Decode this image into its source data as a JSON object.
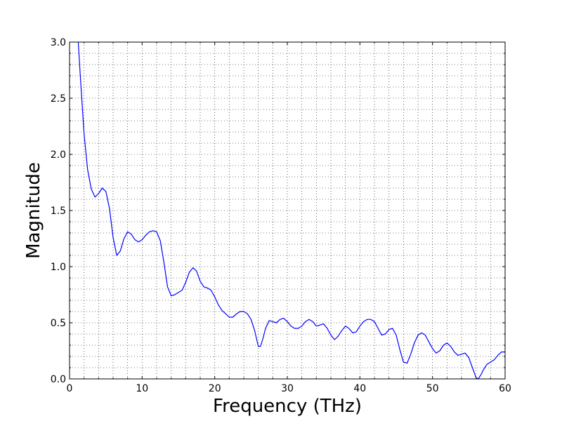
{
  "chart_data": {
    "type": "line",
    "title": "",
    "xlabel": "Frequency (THz)",
    "ylabel": "Magnitude",
    "xlim": [
      0,
      60
    ],
    "ylim": [
      0.0,
      3.0
    ],
    "x_ticks": [
      0,
      10,
      20,
      30,
      40,
      50,
      60
    ],
    "x_tick_labels": [
      "0",
      "10",
      "20",
      "30",
      "40",
      "50",
      "60"
    ],
    "y_ticks": [
      0.0,
      0.5,
      1.0,
      1.5,
      2.0,
      2.5,
      3.0
    ],
    "y_tick_labels": [
      "0.0",
      "0.5",
      "1.0",
      "1.5",
      "2.0",
      "2.5",
      "3.0"
    ],
    "x_minor_step": 2,
    "y_minor_step": 0.1,
    "grid": true,
    "grid_style": "dotted",
    "series": [
      {
        "color": "#0000ff",
        "points": [
          [
            1.2,
            3.0
          ],
          [
            1.5,
            2.68
          ],
          [
            2.0,
            2.18
          ],
          [
            2.5,
            1.86
          ],
          [
            3.0,
            1.69
          ],
          [
            3.5,
            1.62
          ],
          [
            4.0,
            1.65
          ],
          [
            4.5,
            1.7
          ],
          [
            5.0,
            1.67
          ],
          [
            5.5,
            1.52
          ],
          [
            6.0,
            1.26
          ],
          [
            6.5,
            1.1
          ],
          [
            7.0,
            1.14
          ],
          [
            7.5,
            1.25
          ],
          [
            8.0,
            1.31
          ],
          [
            8.5,
            1.29
          ],
          [
            9.0,
            1.24
          ],
          [
            9.5,
            1.22
          ],
          [
            10.0,
            1.24
          ],
          [
            10.5,
            1.28
          ],
          [
            11.0,
            1.31
          ],
          [
            11.5,
            1.32
          ],
          [
            12.0,
            1.31
          ],
          [
            12.5,
            1.23
          ],
          [
            13.0,
            1.04
          ],
          [
            13.5,
            0.82
          ],
          [
            14.0,
            0.74
          ],
          [
            14.5,
            0.75
          ],
          [
            15.0,
            0.77
          ],
          [
            15.5,
            0.79
          ],
          [
            16.0,
            0.86
          ],
          [
            16.5,
            0.95
          ],
          [
            17.0,
            0.99
          ],
          [
            17.5,
            0.96
          ],
          [
            18.0,
            0.87
          ],
          [
            18.5,
            0.82
          ],
          [
            19.0,
            0.81
          ],
          [
            19.5,
            0.79
          ],
          [
            20.0,
            0.73
          ],
          [
            20.5,
            0.66
          ],
          [
            21.0,
            0.61
          ],
          [
            21.5,
            0.58
          ],
          [
            22.0,
            0.55
          ],
          [
            22.5,
            0.55
          ],
          [
            23.0,
            0.58
          ],
          [
            23.5,
            0.6
          ],
          [
            24.0,
            0.6
          ],
          [
            24.5,
            0.58
          ],
          [
            25.0,
            0.53
          ],
          [
            25.5,
            0.43
          ],
          [
            26.0,
            0.29
          ],
          [
            26.3,
            0.29
          ],
          [
            26.6,
            0.35
          ],
          [
            27.0,
            0.45
          ],
          [
            27.5,
            0.52
          ],
          [
            28.0,
            0.51
          ],
          [
            28.5,
            0.5
          ],
          [
            29.0,
            0.53
          ],
          [
            29.5,
            0.54
          ],
          [
            30.0,
            0.51
          ],
          [
            30.5,
            0.47
          ],
          [
            31.0,
            0.45
          ],
          [
            31.5,
            0.45
          ],
          [
            32.0,
            0.47
          ],
          [
            32.5,
            0.51
          ],
          [
            33.0,
            0.53
          ],
          [
            33.5,
            0.51
          ],
          [
            34.0,
            0.47
          ],
          [
            34.5,
            0.48
          ],
          [
            35.0,
            0.49
          ],
          [
            35.5,
            0.45
          ],
          [
            36.0,
            0.39
          ],
          [
            36.5,
            0.35
          ],
          [
            37.0,
            0.38
          ],
          [
            37.5,
            0.43
          ],
          [
            38.0,
            0.47
          ],
          [
            38.5,
            0.45
          ],
          [
            39.0,
            0.41
          ],
          [
            39.5,
            0.42
          ],
          [
            40.0,
            0.47
          ],
          [
            40.5,
            0.51
          ],
          [
            41.0,
            0.53
          ],
          [
            41.5,
            0.53
          ],
          [
            42.0,
            0.51
          ],
          [
            42.5,
            0.45
          ],
          [
            43.0,
            0.39
          ],
          [
            43.5,
            0.4
          ],
          [
            44.0,
            0.44
          ],
          [
            44.5,
            0.45
          ],
          [
            45.0,
            0.39
          ],
          [
            45.5,
            0.26
          ],
          [
            46.0,
            0.15
          ],
          [
            46.5,
            0.14
          ],
          [
            47.0,
            0.22
          ],
          [
            47.5,
            0.32
          ],
          [
            48.0,
            0.39
          ],
          [
            48.5,
            0.41
          ],
          [
            49.0,
            0.39
          ],
          [
            49.5,
            0.33
          ],
          [
            50.0,
            0.27
          ],
          [
            50.5,
            0.23
          ],
          [
            51.0,
            0.25
          ],
          [
            51.5,
            0.3
          ],
          [
            52.0,
            0.32
          ],
          [
            52.5,
            0.29
          ],
          [
            53.0,
            0.24
          ],
          [
            53.5,
            0.21
          ],
          [
            54.0,
            0.22
          ],
          [
            54.5,
            0.23
          ],
          [
            55.0,
            0.19
          ],
          [
            55.5,
            0.1
          ],
          [
            56.0,
            0.01
          ],
          [
            56.3,
            0.0
          ],
          [
            56.7,
            0.04
          ],
          [
            57.0,
            0.08
          ],
          [
            57.5,
            0.13
          ],
          [
            58.0,
            0.15
          ],
          [
            58.5,
            0.17
          ],
          [
            59.0,
            0.21
          ],
          [
            59.5,
            0.24
          ],
          [
            60.0,
            0.24
          ]
        ]
      }
    ]
  }
}
